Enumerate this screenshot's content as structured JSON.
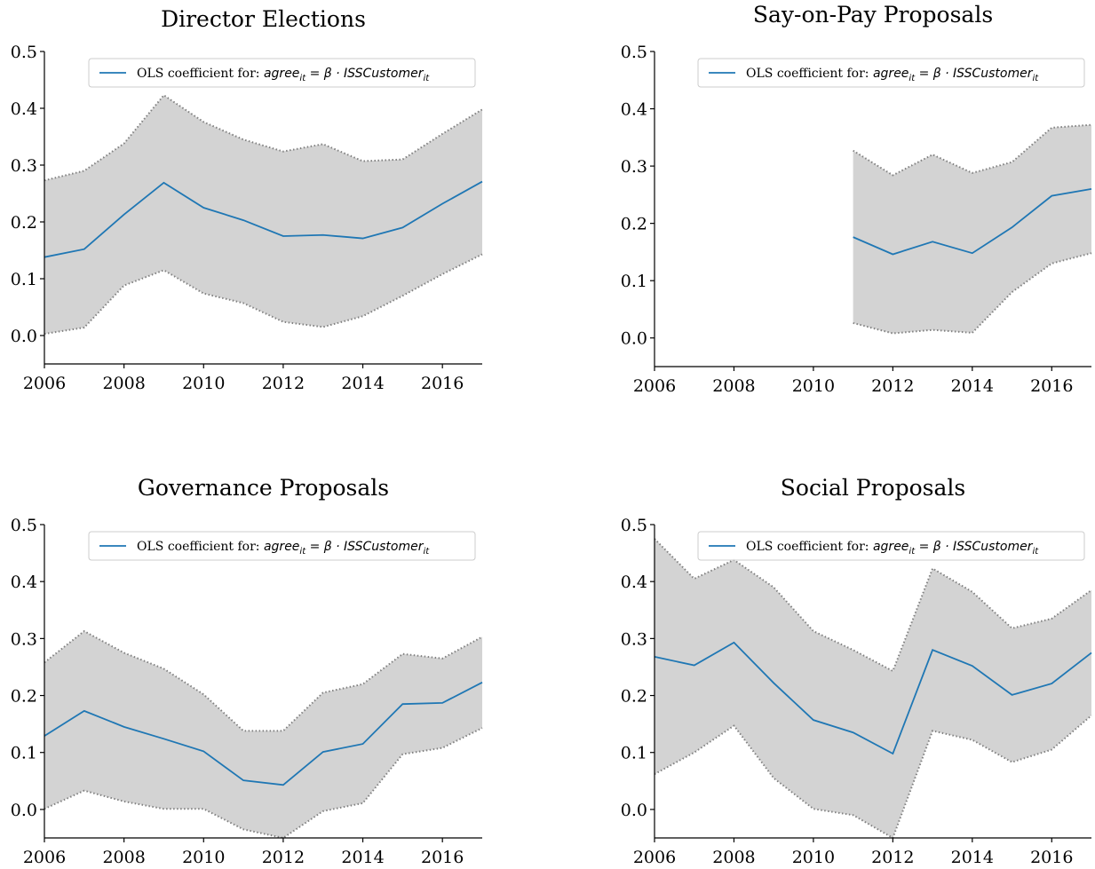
{
  "legend_label": {
    "prefix": "OLS coefficient for: ",
    "lhs": "agree",
    "lhs_sub": "it",
    "eq": " = β · ",
    "rhs": "ISSCustomer",
    "rhs_sub": "it"
  },
  "colors": {
    "line": "#1f77b4",
    "band_fill": "#d3d3d3",
    "band_edge": "#808080",
    "axis": "#000000"
  },
  "chart_data": [
    {
      "type": "line",
      "title": "Director Elections",
      "xlabel": "",
      "ylabel": "",
      "xlim": [
        2006,
        2017
      ],
      "ylim": [
        -0.05,
        0.5
      ],
      "xticks": [
        "2006",
        "2008",
        "2010",
        "2012",
        "2014",
        "2016"
      ],
      "yticks": [
        "0.0",
        "0.1",
        "0.2",
        "0.3",
        "0.4",
        "0.5"
      ],
      "legend": "upper right",
      "grid": false,
      "series": [
        {
          "x": [
            2006,
            2007,
            2008,
            2009,
            2010,
            2011,
            2012,
            2013,
            2014,
            2015,
            2016,
            2017
          ],
          "y": [
            0.138,
            0.152,
            0.213,
            0.269,
            0.225,
            0.203,
            0.175,
            0.177,
            0.171,
            0.19,
            0.232,
            0.271
          ],
          "lower": [
            0.003,
            0.014,
            0.088,
            0.115,
            0.074,
            0.057,
            0.024,
            0.015,
            0.034,
            0.07,
            0.108,
            0.143
          ],
          "upper": [
            0.273,
            0.29,
            0.338,
            0.423,
            0.376,
            0.345,
            0.324,
            0.337,
            0.307,
            0.31,
            0.355,
            0.398
          ]
        }
      ]
    },
    {
      "type": "line",
      "title": "Say-on-Pay Proposals",
      "xlabel": "",
      "ylabel": "",
      "xlim": [
        2006,
        2017
      ],
      "ylim": [
        -0.05,
        0.5
      ],
      "xticks": [
        "2006",
        "2008",
        "2010",
        "2012",
        "2014",
        "2016"
      ],
      "yticks": [
        "0.0",
        "0.1",
        "0.2",
        "0.3",
        "0.4",
        "0.5"
      ],
      "legend": "upper right",
      "grid": false,
      "series": [
        {
          "x": [
            2011,
            2012,
            2013,
            2014,
            2015,
            2016,
            2017
          ],
          "y": [
            0.176,
            0.146,
            0.168,
            0.148,
            0.193,
            0.248,
            0.26
          ],
          "lower": [
            0.026,
            0.008,
            0.014,
            0.009,
            0.08,
            0.13,
            0.148
          ],
          "upper": [
            0.327,
            0.284,
            0.32,
            0.288,
            0.307,
            0.367,
            0.372
          ]
        }
      ]
    },
    {
      "type": "line",
      "title": "Governance Proposals",
      "xlabel": "",
      "ylabel": "",
      "xlim": [
        2006,
        2017
      ],
      "ylim": [
        -0.05,
        0.5
      ],
      "xticks": [
        "2006",
        "2008",
        "2010",
        "2012",
        "2014",
        "2016"
      ],
      "yticks": [
        "0.0",
        "0.1",
        "0.2",
        "0.3",
        "0.4",
        "0.5"
      ],
      "legend": "upper right",
      "grid": false,
      "series": [
        {
          "x": [
            2006,
            2007,
            2008,
            2009,
            2010,
            2011,
            2012,
            2013,
            2014,
            2015,
            2016,
            2017
          ],
          "y": [
            0.129,
            0.173,
            0.145,
            0.124,
            0.102,
            0.051,
            0.043,
            0.101,
            0.115,
            0.185,
            0.187,
            0.223
          ],
          "lower": [
            0.001,
            0.033,
            0.014,
            0.001,
            0.001,
            -0.035,
            -0.05,
            -0.003,
            0.011,
            0.097,
            0.108,
            0.143
          ],
          "upper": [
            0.258,
            0.313,
            0.275,
            0.247,
            0.202,
            0.138,
            0.138,
            0.205,
            0.22,
            0.273,
            0.265,
            0.303
          ]
        }
      ]
    },
    {
      "type": "line",
      "title": "Social Proposals",
      "xlabel": "",
      "ylabel": "",
      "xlim": [
        2006,
        2017
      ],
      "ylim": [
        -0.05,
        0.5
      ],
      "xticks": [
        "2006",
        "2008",
        "2010",
        "2012",
        "2014",
        "2016"
      ],
      "yticks": [
        "0.0",
        "0.1",
        "0.2",
        "0.3",
        "0.4",
        "0.5"
      ],
      "legend": "upper right",
      "grid": false,
      "series": [
        {
          "x": [
            2006,
            2007,
            2008,
            2009,
            2010,
            2011,
            2012,
            2013,
            2014,
            2015,
            2016,
            2017
          ],
          "y": [
            0.268,
            0.253,
            0.293,
            0.222,
            0.157,
            0.135,
            0.098,
            0.28,
            0.252,
            0.201,
            0.221,
            0.275
          ],
          "lower": [
            0.062,
            0.1,
            0.147,
            0.055,
            0.001,
            -0.01,
            -0.05,
            0.138,
            0.122,
            0.083,
            0.105,
            0.165
          ],
          "upper": [
            0.475,
            0.405,
            0.438,
            0.39,
            0.313,
            0.28,
            0.243,
            0.423,
            0.382,
            0.318,
            0.335,
            0.385
          ]
        }
      ]
    }
  ]
}
